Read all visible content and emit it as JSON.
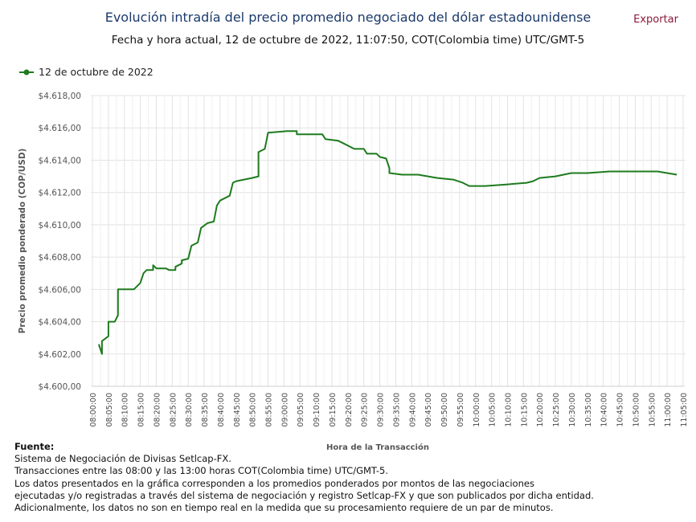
{
  "header": {
    "title": "Evolución intradía del precio promedio negociado del dólar estadounidense",
    "subtitle": "Fecha y hora actual, 12 de octubre de 2022, 11:07:50, COT(Colombia time) UTC/GMT-5",
    "export_label": "Exportar"
  },
  "colors": {
    "series": "#1e7b1e",
    "title": "#1b3a6b",
    "export": "#8b1a3a",
    "grid": "#e3e3e3"
  },
  "chart_data": {
    "type": "line",
    "title": "Evolución intradía del precio promedio negociado del dólar estadounidense",
    "xlabel": "Hora de la Transacción",
    "ylabel": "Precio promedio ponderado (COP/USD)",
    "ylim": [
      4600,
      4618
    ],
    "xlim": [
      "08:00",
      "11:05"
    ],
    "grid": true,
    "legend": "top-left",
    "yticks": [
      "$4.600,00",
      "$4.602,00",
      "$4.604,00",
      "$4.606,00",
      "$4.608,00",
      "$4.610,00",
      "$4.612,00",
      "$4.614,00",
      "$4.616,00",
      "$4.618,00"
    ],
    "xticks": [
      "08:00:00",
      "08:05:00",
      "08:10:00",
      "08:15:00",
      "08:20:00",
      "08:25:00",
      "08:30:00",
      "08:35:00",
      "08:40:00",
      "08:45:00",
      "08:50:00",
      "08:55:00",
      "09:00:00",
      "09:05:00",
      "09:10:00",
      "09:15:00",
      "09:20:00",
      "09:25:00",
      "09:30:00",
      "09:35:00",
      "09:40:00",
      "09:45:00",
      "09:50:00",
      "09:55:00",
      "10:00:00",
      "10:05:00",
      "10:10:00",
      "10:15:00",
      "10:20:00",
      "10:25:00",
      "10:30:00",
      "10:35:00",
      "10:40:00",
      "10:45:00",
      "10:50:00",
      "10:55:00",
      "11:00:00",
      "11:05:00"
    ],
    "series": [
      {
        "name": "12 de octubre de 2022",
        "points": [
          [
            "08:02",
            4602.6
          ],
          [
            "08:03",
            4602.0
          ],
          [
            "08:03",
            4602.8
          ],
          [
            "08:05",
            4603.1
          ],
          [
            "08:05",
            4604.0
          ],
          [
            "08:07",
            4604.0
          ],
          [
            "08:08",
            4604.4
          ],
          [
            "08:08",
            4606.0
          ],
          [
            "08:13",
            4606.0
          ],
          [
            "08:15",
            4606.4
          ],
          [
            "08:16",
            4607.0
          ],
          [
            "08:17",
            4607.2
          ],
          [
            "08:19",
            4607.2
          ],
          [
            "08:19",
            4607.5
          ],
          [
            "08:20",
            4607.3
          ],
          [
            "08:23",
            4607.3
          ],
          [
            "08:24",
            4607.2
          ],
          [
            "08:26",
            4607.2
          ],
          [
            "08:26",
            4607.4
          ],
          [
            "08:28",
            4607.6
          ],
          [
            "08:28",
            4607.8
          ],
          [
            "08:30",
            4607.9
          ],
          [
            "08:31",
            4608.7
          ],
          [
            "08:33",
            4608.9
          ],
          [
            "08:34",
            4609.8
          ],
          [
            "08:36",
            4610.1
          ],
          [
            "08:38",
            4610.2
          ],
          [
            "08:39",
            4611.2
          ],
          [
            "08:40",
            4611.5
          ],
          [
            "08:43",
            4611.8
          ],
          [
            "08:44",
            4612.6
          ],
          [
            "08:45",
            4612.7
          ],
          [
            "08:50",
            4612.9
          ],
          [
            "08:52",
            4613.0
          ],
          [
            "08:52",
            4614.5
          ],
          [
            "08:54",
            4614.7
          ],
          [
            "08:55",
            4615.7
          ],
          [
            "09:01",
            4615.8
          ],
          [
            "09:04",
            4615.8
          ],
          [
            "09:04",
            4615.6
          ],
          [
            "09:12",
            4615.6
          ],
          [
            "09:13",
            4615.3
          ],
          [
            "09:17",
            4615.2
          ],
          [
            "09:19",
            4615.0
          ],
          [
            "09:22",
            4614.7
          ],
          [
            "09:25",
            4614.7
          ],
          [
            "09:26",
            4614.4
          ],
          [
            "09:29",
            4614.4
          ],
          [
            "09:30",
            4614.2
          ],
          [
            "09:32",
            4614.1
          ],
          [
            "09:33",
            4613.5
          ],
          [
            "09:33",
            4613.2
          ],
          [
            "09:37",
            4613.1
          ],
          [
            "09:42",
            4613.1
          ],
          [
            "09:48",
            4612.9
          ],
          [
            "09:53",
            4612.8
          ],
          [
            "09:56",
            4612.6
          ],
          [
            "09:58",
            4612.4
          ],
          [
            "10:03",
            4612.4
          ],
          [
            "10:10",
            4612.5
          ],
          [
            "10:16",
            4612.6
          ],
          [
            "10:18",
            4612.7
          ],
          [
            "10:20",
            4612.9
          ],
          [
            "10:25",
            4613.0
          ],
          [
            "10:30",
            4613.2
          ],
          [
            "10:35",
            4613.2
          ],
          [
            "10:42",
            4613.3
          ],
          [
            "10:50",
            4613.3
          ],
          [
            "10:57",
            4613.3
          ],
          [
            "11:00",
            4613.2
          ],
          [
            "11:03",
            4613.1
          ]
        ]
      }
    ]
  },
  "footer": {
    "heading": "Fuente:",
    "lines": [
      "Sistema de Negociación de Divisas Setlcap-FX.",
      "Transacciones entre las 08:00 y las 13:00 horas COT(Colombia time) UTC/GMT-5.",
      "Los datos presentados en la gráfica corresponden a los promedios ponderados por montos de las negociaciones",
      "ejecutadas y/o registradas a través del sistema de negociación y registro Setlcap-FX y que son publicados por dicha entidad.",
      "Adicionalmente, los datos no son en tiempo real en la medida que su procesamiento requiere de un par de minutos."
    ]
  }
}
